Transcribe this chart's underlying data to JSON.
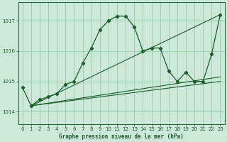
{
  "title": "Graphe pression niveau de la mer (hPa)",
  "background_color": "#cce8d8",
  "grid_color": "#99ccaa",
  "line_color": "#1a5c2a",
  "xlim": [
    -0.5,
    23.5
  ],
  "ylim": [
    1013.6,
    1017.6
  ],
  "yticks": [
    1014,
    1015,
    1016,
    1017
  ],
  "xticks": [
    0,
    1,
    2,
    3,
    4,
    5,
    6,
    7,
    8,
    9,
    10,
    11,
    12,
    13,
    14,
    15,
    16,
    17,
    18,
    19,
    20,
    21,
    22,
    23
  ],
  "series_main": {
    "x": [
      0,
      1,
      2,
      3,
      4,
      5,
      6,
      7,
      8,
      9,
      10,
      11,
      12,
      13,
      14,
      15,
      16,
      17,
      18,
      19,
      20,
      21,
      22,
      23
    ],
    "y": [
      1014.8,
      1014.2,
      1014.4,
      1014.5,
      1014.6,
      1014.9,
      1015.0,
      1015.6,
      1016.1,
      1016.7,
      1017.0,
      1017.15,
      1017.15,
      1016.8,
      1016.0,
      1016.1,
      1016.1,
      1015.35,
      1015.0,
      1015.3,
      1015.0,
      1015.0,
      1015.9,
      1017.2
    ]
  },
  "series_trends": [
    {
      "x": [
        1,
        23
      ],
      "y": [
        1014.2,
        1017.2
      ]
    },
    {
      "x": [
        1,
        23
      ],
      "y": [
        1014.2,
        1015.15
      ]
    },
    {
      "x": [
        1,
        23
      ],
      "y": [
        1014.2,
        1015.0
      ]
    }
  ]
}
